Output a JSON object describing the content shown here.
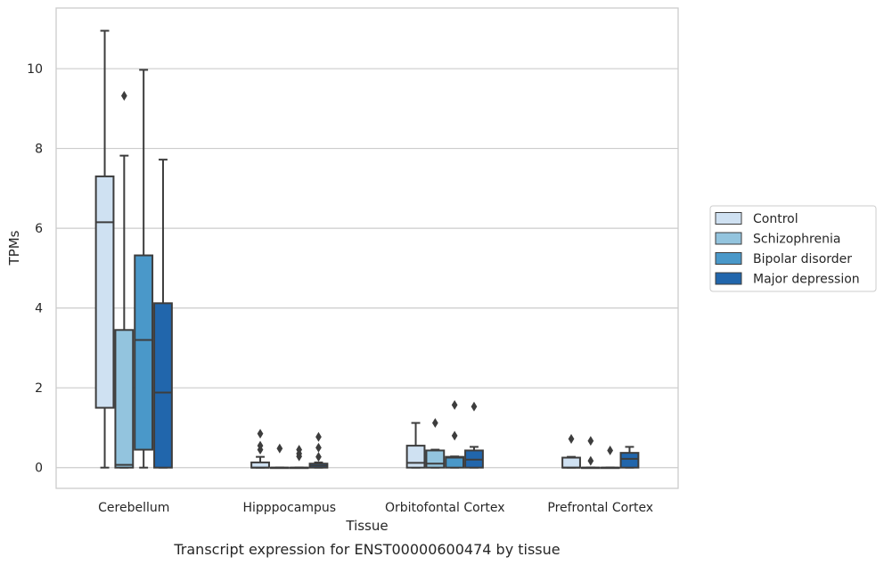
{
  "chart_data": {
    "type": "box",
    "title": "Transcript expression for ENST00000600474 by tissue",
    "xlabel": "Tissue",
    "ylabel": "TPMs",
    "ylim": [
      -0.52,
      11.52
    ],
    "yticks": [
      0,
      2,
      4,
      6,
      8,
      10
    ],
    "grid": true,
    "legend_position": "right",
    "categories": [
      "Cerebellum",
      "Hipppocampus",
      "Orbitofontal Cortex",
      "Prefrontal Cortex"
    ],
    "series": [
      {
        "name": "Control",
        "color": "#cfe1f2",
        "boxes": [
          {
            "whislo": 0,
            "q1": 1.5,
            "med": 6.15,
            "q3": 7.3,
            "whishi": 10.95,
            "fliers": []
          },
          {
            "whislo": 0,
            "q1": 0,
            "med": 0,
            "q3": 0.13,
            "whishi": 0.27,
            "fliers": [
              0.45,
              0.55,
              0.85
            ]
          },
          {
            "whislo": 0,
            "q1": 0,
            "med": 0.12,
            "q3": 0.55,
            "whishi": 1.12,
            "fliers": []
          },
          {
            "whislo": 0,
            "q1": 0,
            "med": 0,
            "q3": 0.25,
            "whishi": 0.27,
            "fliers": [
              0.72
            ]
          }
        ]
      },
      {
        "name": "Schizophrenia",
        "color": "#93c4de",
        "boxes": [
          {
            "whislo": 0,
            "q1": 0,
            "med": 0.07,
            "q3": 3.45,
            "whishi": 7.82,
            "fliers": [
              9.32
            ]
          },
          {
            "whislo": 0,
            "q1": 0,
            "med": 0,
            "q3": 0,
            "whishi": 0,
            "fliers": [
              0.48
            ]
          },
          {
            "whislo": 0,
            "q1": 0,
            "med": 0.1,
            "q3": 0.43,
            "whishi": 0.45,
            "fliers": [
              1.12
            ]
          },
          {
            "whislo": 0,
            "q1": 0,
            "med": 0,
            "q3": 0,
            "whishi": 0,
            "fliers": [
              0.17,
              0.67
            ]
          }
        ]
      },
      {
        "name": "Bipolar disorder",
        "color": "#4a98c9",
        "boxes": [
          {
            "whislo": 0,
            "q1": 0.45,
            "med": 3.2,
            "q3": 5.32,
            "whishi": 9.97,
            "fliers": []
          },
          {
            "whislo": 0,
            "q1": 0,
            "med": 0,
            "q3": 0,
            "whishi": 0,
            "fliers": [
              0.28,
              0.35,
              0.45
            ]
          },
          {
            "whislo": 0,
            "q1": 0,
            "med": 0.25,
            "q3": 0.27,
            "whishi": 0.28,
            "fliers": [
              0.8,
              1.57
            ]
          },
          {
            "whislo": 0,
            "q1": 0,
            "med": 0,
            "q3": 0,
            "whishi": 0,
            "fliers": [
              0.43
            ]
          }
        ]
      },
      {
        "name": "Major depression",
        "color": "#2166ac",
        "boxes": [
          {
            "whislo": 0,
            "q1": 0,
            "med": 1.88,
            "q3": 4.12,
            "whishi": 7.72,
            "fliers": []
          },
          {
            "whislo": 0,
            "q1": 0,
            "med": 0.05,
            "q3": 0.1,
            "whishi": 0.13,
            "fliers": [
              0.27,
              0.5,
              0.77
            ]
          },
          {
            "whislo": 0,
            "q1": 0,
            "med": 0.2,
            "q3": 0.43,
            "whishi": 0.52,
            "fliers": [
              1.53
            ]
          },
          {
            "whislo": 0,
            "q1": 0,
            "med": 0.22,
            "q3": 0.37,
            "whishi": 0.52,
            "fliers": []
          }
        ]
      }
    ]
  }
}
